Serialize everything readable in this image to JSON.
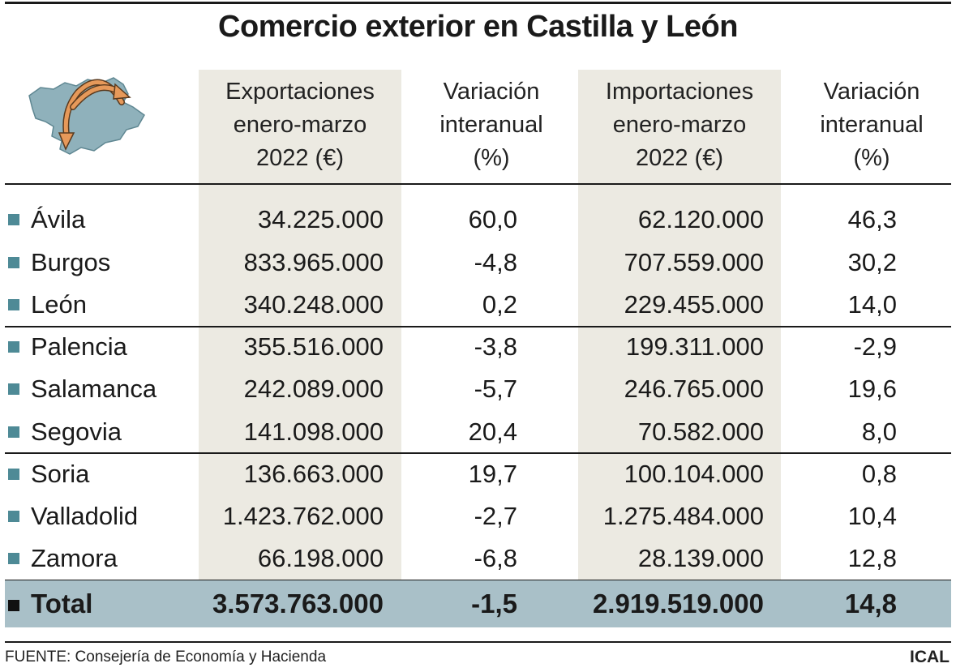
{
  "title": "Comercio exterior en Castilla y León",
  "headers": {
    "exports": [
      "Exportaciones",
      "enero-marzo",
      "2022 (€)"
    ],
    "exports_var": [
      "Variación",
      "interanual",
      "(%)"
    ],
    "imports": [
      "Importaciones",
      "enero-marzo",
      "2022 (€)"
    ],
    "imports_var": [
      "Variación",
      "interanual",
      "(%)"
    ]
  },
  "rows": [
    {
      "province": "Ávila",
      "exports": "34.225.000",
      "exports_var": "60,0",
      "imports": "62.120.000",
      "imports_var": "46,3"
    },
    {
      "province": "Burgos",
      "exports": "833.965.000",
      "exports_var": "-4,8",
      "imports": "707.559.000",
      "imports_var": "30,2"
    },
    {
      "province": "León",
      "exports": "340.248.000",
      "exports_var": "0,2",
      "imports": "229.455.000",
      "imports_var": "14,0"
    },
    {
      "province": "Palencia",
      "exports": "355.516.000",
      "exports_var": "-3,8",
      "imports": "199.311.000",
      "imports_var": "-2,9"
    },
    {
      "province": "Salamanca",
      "exports": "242.089.000",
      "exports_var": "-5,7",
      "imports": "246.765.000",
      "imports_var": "19,6"
    },
    {
      "province": "Segovia",
      "exports": "141.098.000",
      "exports_var": "20,4",
      "imports": "70.582.000",
      "imports_var": "8,0"
    },
    {
      "province": "Soria",
      "exports": "136.663.000",
      "exports_var": "19,7",
      "imports": "100.104.000",
      "imports_var": "0,8"
    },
    {
      "province": "Valladolid",
      "exports": "1.423.762.000",
      "exports_var": "-2,7",
      "imports": "1.275.484.000",
      "imports_var": "10,4"
    },
    {
      "province": "Zamora",
      "exports": "66.198.000",
      "exports_var": "-6,8",
      "imports": "28.139.000",
      "imports_var": "12,8"
    }
  ],
  "total": {
    "label": "Total",
    "exports": "3.573.763.000",
    "exports_var": "-1,5",
    "imports": "2.919.519.000",
    "imports_var": "14,8"
  },
  "source": "FUENTE: Consejería de Economía y Hacienda",
  "brand": "ICAL",
  "icon": "castilla-y-leon-map-icon",
  "colors": {
    "column_shade": "#eceae2",
    "map_fill": "#8fb1bb",
    "arrow": "#e6995a",
    "bullet": "#4e8a96",
    "total_band": "#a9c0c8"
  },
  "chart_data": {
    "type": "table",
    "title": "Comercio exterior en Castilla y León",
    "columns": [
      "Exportaciones enero-marzo 2022 (€)",
      "Variación interanual (%)",
      "Importaciones enero-marzo 2022 (€)",
      "Variación interanual (%)"
    ],
    "categories": [
      "Ávila",
      "Burgos",
      "León",
      "Palencia",
      "Salamanca",
      "Segovia",
      "Soria",
      "Valladolid",
      "Zamora",
      "Total"
    ],
    "series": [
      {
        "name": "Exportaciones enero-marzo 2022 (€)",
        "values": [
          34225000,
          833965000,
          340248000,
          355516000,
          242089000,
          141098000,
          136663000,
          1423762000,
          66198000,
          3573763000
        ]
      },
      {
        "name": "Variación interanual (%)",
        "values": [
          60.0,
          -4.8,
          0.2,
          -3.8,
          -5.7,
          20.4,
          19.7,
          -2.7,
          -6.8,
          -1.5
        ]
      },
      {
        "name": "Importaciones enero-marzo 2022 (€)",
        "values": [
          62120000,
          707559000,
          229455000,
          199311000,
          246765000,
          70582000,
          100104000,
          1275484000,
          28139000,
          2919519000
        ]
      },
      {
        "name": "Variación interanual (%)",
        "values": [
          46.3,
          30.2,
          14.0,
          -2.9,
          19.6,
          8.0,
          0.8,
          10.4,
          12.8,
          14.8
        ]
      }
    ]
  }
}
